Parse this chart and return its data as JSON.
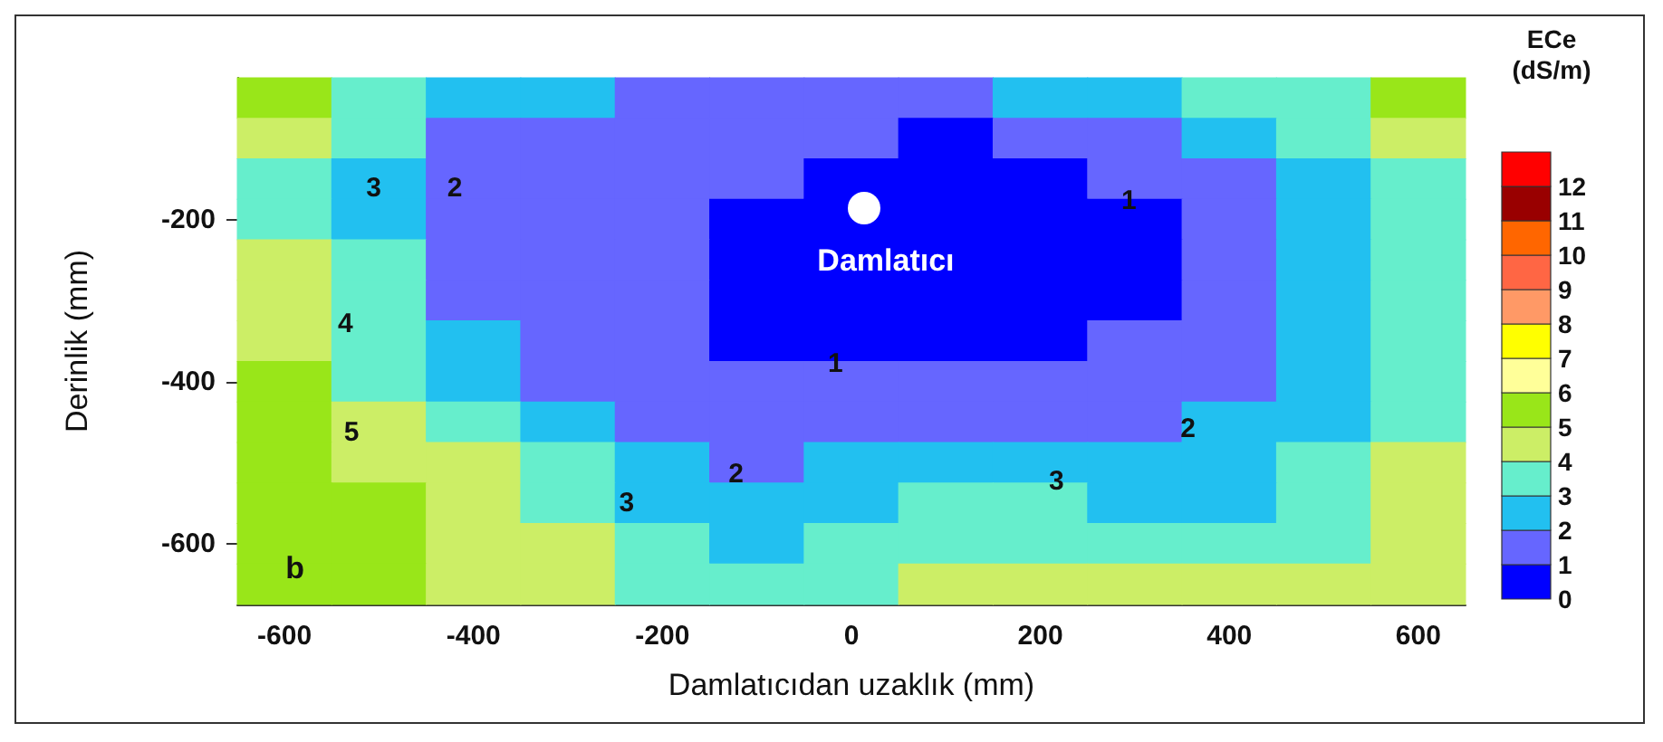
{
  "chart_data": {
    "type": "heatmap",
    "xlabel": "Damlatıcıdan uzaklık (mm)",
    "ylabel": "Derinlik (mm)",
    "clabel": "ECe (dS/m)",
    "categories": [
      "-600",
      null,
      "-400",
      null,
      "-200",
      null,
      "0",
      null,
      "200",
      null,
      "400",
      null,
      "600"
    ],
    "y_categories": [
      null,
      null,
      null,
      "-200",
      null,
      null,
      null,
      "-400",
      null,
      null,
      null,
      "-600",
      null
    ],
    "cells": [
      [
        5.5,
        3.5,
        2.5,
        2.5,
        1.5,
        1.5,
        1.5,
        1.5,
        2.5,
        2.5,
        3.5,
        3.5,
        5.5
      ],
      [
        4.5,
        3.5,
        1.5,
        1.5,
        1.5,
        1.5,
        1.5,
        0.5,
        1.5,
        1.5,
        2.5,
        3.5,
        4.5
      ],
      [
        3.5,
        2.5,
        1.5,
        1.5,
        1.5,
        1.5,
        0.5,
        0.5,
        0.5,
        1.5,
        1.5,
        2.5,
        3.5
      ],
      [
        3.5,
        2.5,
        1.5,
        1.5,
        1.5,
        0.5,
        0.5,
        0.5,
        0.5,
        0.5,
        1.5,
        2.5,
        3.5
      ],
      [
        4.5,
        3.5,
        1.5,
        1.5,
        1.5,
        0.5,
        0.5,
        0.5,
        0.5,
        0.5,
        1.5,
        2.5,
        3.5
      ],
      [
        4.5,
        3.5,
        1.5,
        1.5,
        1.5,
        0.5,
        0.5,
        0.5,
        0.5,
        0.5,
        1.5,
        2.5,
        3.5
      ],
      [
        4.5,
        3.5,
        2.5,
        1.5,
        1.5,
        0.5,
        0.5,
        0.5,
        0.5,
        1.5,
        1.5,
        2.5,
        3.5
      ],
      [
        5.5,
        3.5,
        2.5,
        1.5,
        1.5,
        1.5,
        1.5,
        1.5,
        1.5,
        1.5,
        1.5,
        2.5,
        3.5
      ],
      [
        5.5,
        4.5,
        3.5,
        2.5,
        1.5,
        1.5,
        1.5,
        1.5,
        1.5,
        1.5,
        2.5,
        2.5,
        3.5
      ],
      [
        5.5,
        4.5,
        4.5,
        3.5,
        2.5,
        1.5,
        2.5,
        2.5,
        2.5,
        2.5,
        2.5,
        3.5,
        4.5
      ],
      [
        5.5,
        5.5,
        4.5,
        3.5,
        2.5,
        2.5,
        2.5,
        3.5,
        3.5,
        2.5,
        2.5,
        3.5,
        4.5
      ],
      [
        5.5,
        5.5,
        4.5,
        4.5,
        3.5,
        2.5,
        3.5,
        3.5,
        3.5,
        3.5,
        3.5,
        3.5,
        4.5
      ],
      [
        5.5,
        5.5,
        4.5,
        4.5,
        3.5,
        3.5,
        3.5,
        4.5,
        4.5,
        4.5,
        4.5,
        4.5,
        4.5
      ]
    ],
    "clim": [
      0,
      13
    ],
    "cticks": [
      0,
      1,
      2,
      3,
      4,
      5,
      6,
      7,
      8,
      9,
      10,
      11,
      12
    ],
    "colors": [
      "#0000ff",
      "#6666ff",
      "#22c0f0",
      "#66eecc",
      "#ccee66",
      "#99e619",
      "#ffff99",
      "#ffff00",
      "#ff9966",
      "#ff6644",
      "#ff6600",
      "#990000",
      "#ff0000"
    ],
    "annotations": [
      "Damlatıcı",
      "b",
      "3",
      "2",
      "4",
      "5",
      "1",
      "2",
      "3",
      "3",
      "2",
      "1"
    ]
  }
}
